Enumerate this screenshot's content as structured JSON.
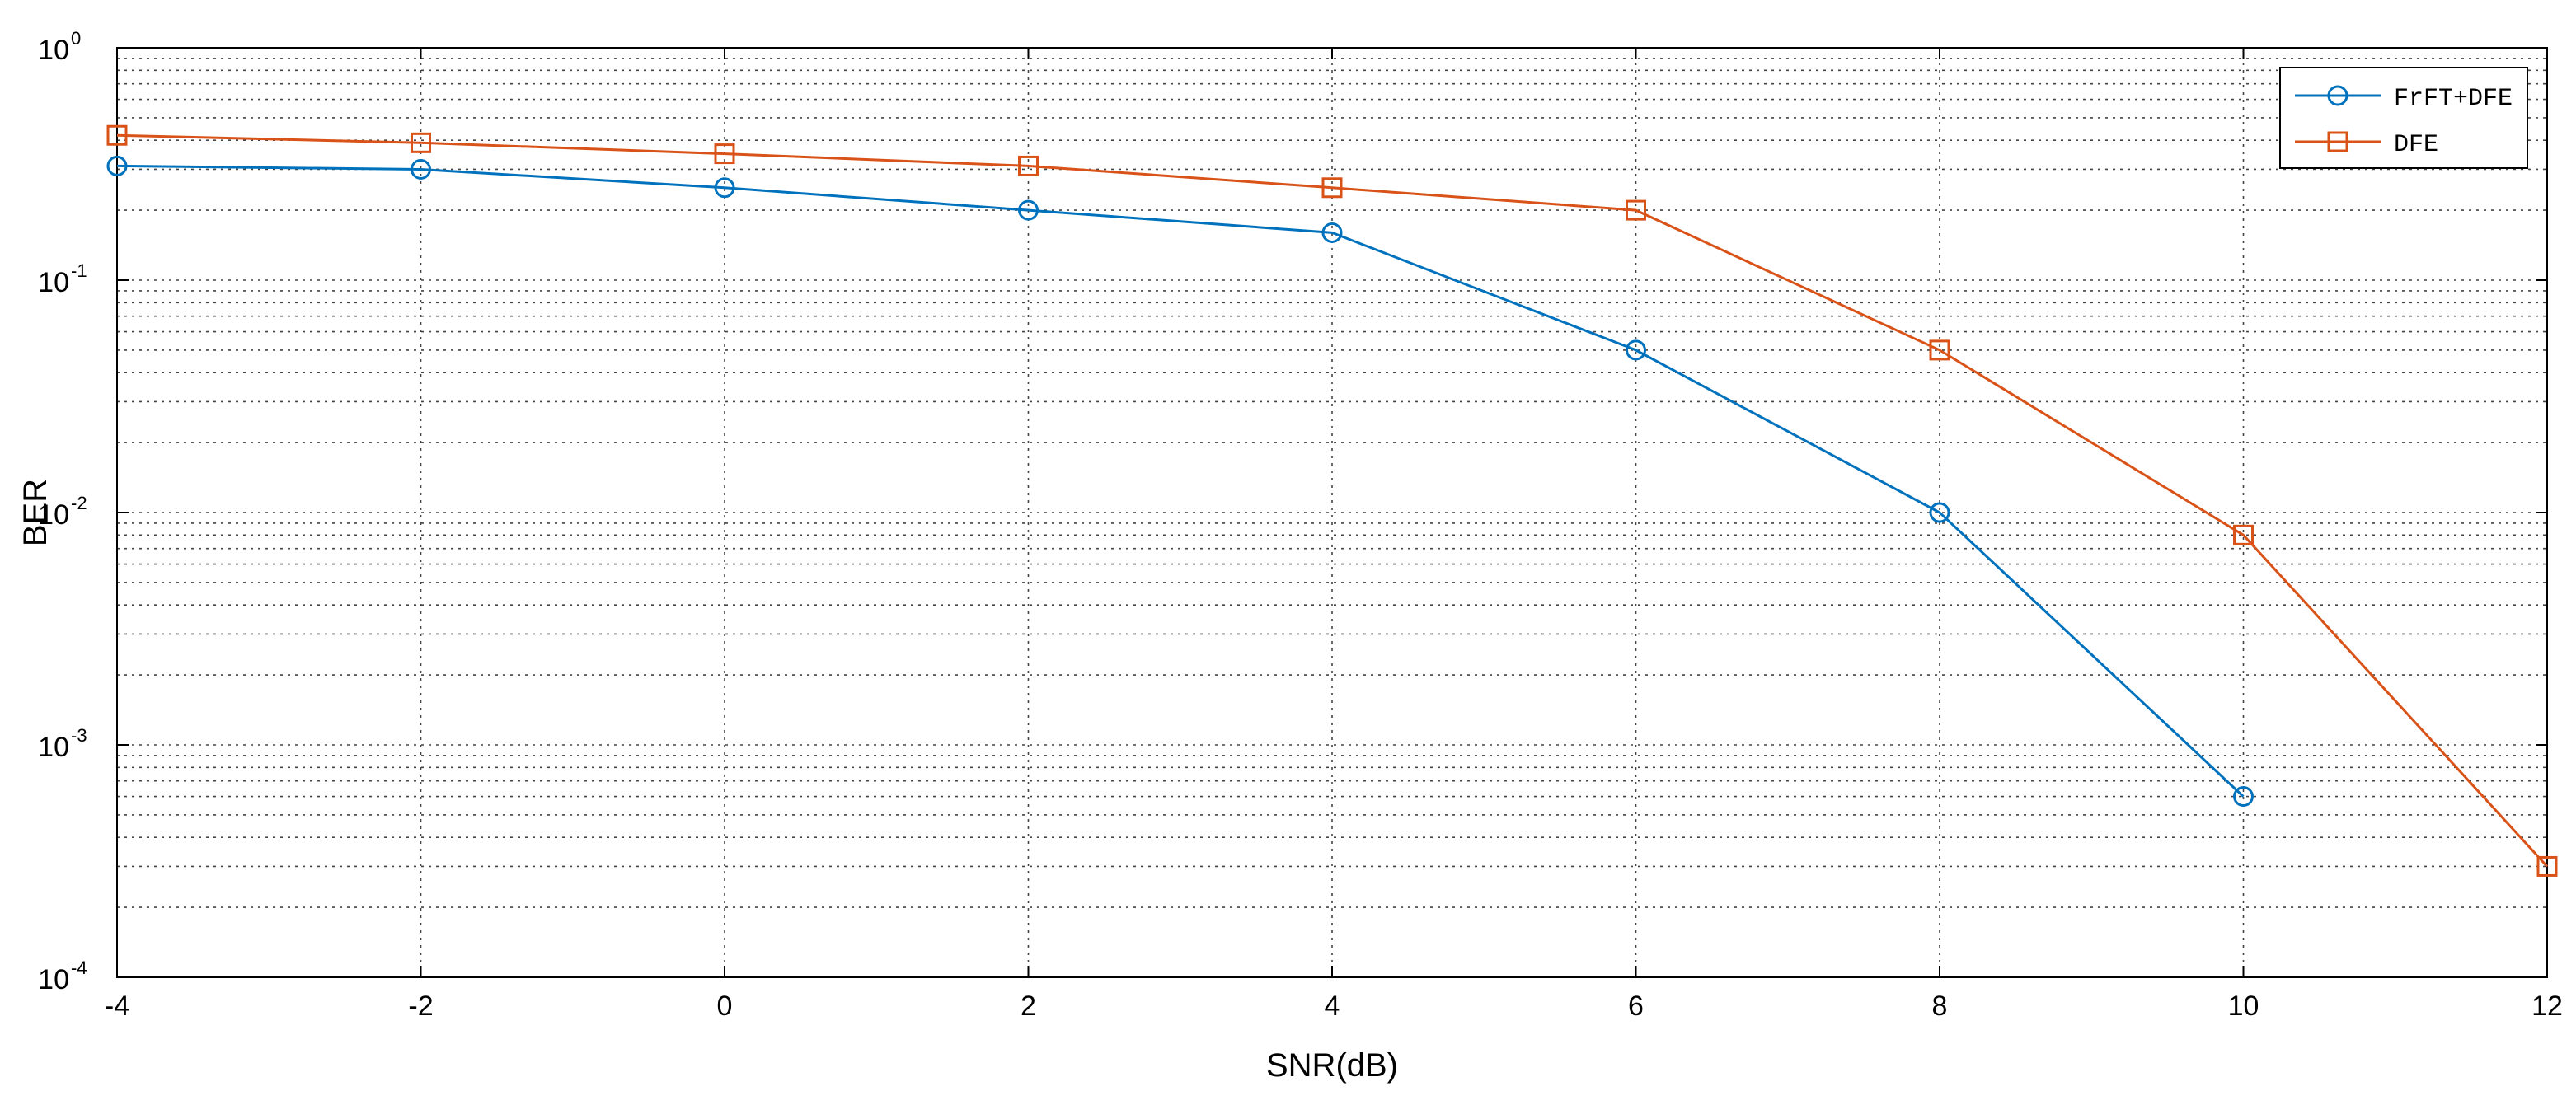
{
  "chart_data": {
    "type": "line",
    "title": "",
    "xlabel": "SNR(dB)",
    "ylabel": "BER",
    "yscale": "log",
    "xlim": [
      -4,
      12
    ],
    "ylim": [
      0.0001,
      1
    ],
    "xticks": [
      -4,
      -2,
      0,
      2,
      4,
      6,
      8,
      10,
      12
    ],
    "xtick_labels": [
      "-4",
      "-2",
      "0",
      "2",
      "4",
      "6",
      "8",
      "10",
      "12"
    ],
    "yticks": [
      {
        "value": 1,
        "base": "10",
        "exp": "0"
      },
      {
        "value": 0.1,
        "base": "10",
        "exp": "-1"
      },
      {
        "value": 0.01,
        "base": "10",
        "exp": "-2"
      },
      {
        "value": 0.001,
        "base": "10",
        "exp": "-3"
      },
      {
        "value": 0.0001,
        "base": "10",
        "exp": "-4"
      }
    ],
    "grid": true,
    "legend_position": "top-right",
    "series": [
      {
        "name": "FrFT+DFE",
        "color": "#0072BD",
        "marker": "circle",
        "x": [
          -4,
          -2,
          0,
          2,
          4,
          6,
          8,
          10
        ],
        "y": [
          0.31,
          0.3,
          0.25,
          0.2,
          0.16,
          0.05,
          0.01,
          0.0006
        ]
      },
      {
        "name": "DFE",
        "color": "#D95319",
        "marker": "square",
        "x": [
          -4,
          -2,
          0,
          2,
          4,
          6,
          8,
          10,
          12
        ],
        "y": [
          0.42,
          0.39,
          0.35,
          0.31,
          0.25,
          0.2,
          0.05,
          0.008,
          0.0003
        ]
      }
    ]
  }
}
